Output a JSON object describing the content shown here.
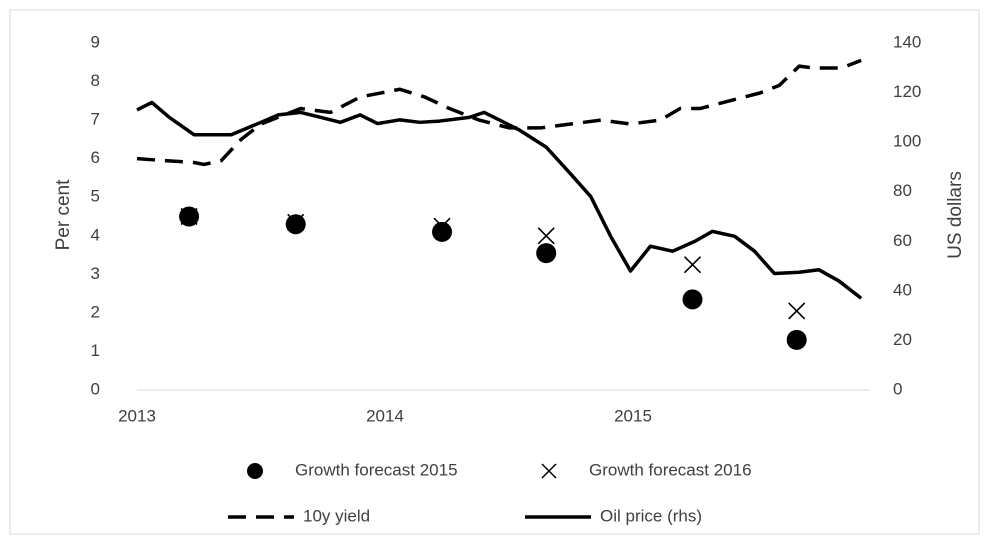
{
  "chart_data": {
    "type": "line",
    "y_label": "Per cent",
    "y2_label": "US dollars",
    "xlim": [
      2013,
      2016
    ],
    "xticks": [
      2013,
      2014,
      2015
    ],
    "ylim": [
      0,
      9
    ],
    "yticks": [
      0,
      1,
      2,
      3,
      4,
      5,
      6,
      7,
      8,
      9
    ],
    "y2lim": [
      0,
      140
    ],
    "y2ticks": [
      0,
      20,
      40,
      60,
      80,
      100,
      120,
      140
    ],
    "grid": false,
    "legend": "bottom",
    "series": [
      {
        "name": "Growth forecast 2015",
        "color": "#000000",
        "marker": "circle",
        "x": [
          2013.21,
          2013.64,
          2014.23,
          2014.65,
          2015.24,
          2015.66
        ],
        "values": [
          4.5,
          4.3,
          4.1,
          3.55,
          2.35,
          1.3
        ]
      },
      {
        "name": "Growth forecast 2016",
        "color": "#000000",
        "marker": "cross",
        "x": [
          2013.21,
          2013.64,
          2014.23,
          2014.65,
          2015.24,
          2015.66
        ],
        "values": [
          4.5,
          4.35,
          4.25,
          4.0,
          3.25,
          2.05
        ]
      },
      {
        "name": "10y yield",
        "color": "#000000",
        "marker": "dashed-line",
        "x": [
          2013.0,
          2013.11,
          2013.23,
          2013.27,
          2013.34,
          2013.42,
          2013.5,
          2013.62,
          2013.66,
          2013.78,
          2013.9,
          2014.06,
          2014.16,
          2014.26,
          2014.38,
          2014.5,
          2014.63,
          2014.75,
          2014.87,
          2014.99,
          2015.11,
          2015.19,
          2015.27,
          2015.39,
          2015.51,
          2015.59,
          2015.67,
          2015.73,
          2015.84,
          2015.92
        ],
        "values": [
          6.0,
          5.95,
          5.9,
          5.85,
          5.95,
          6.5,
          6.9,
          7.2,
          7.3,
          7.2,
          7.6,
          7.8,
          7.6,
          7.3,
          7.0,
          6.8,
          6.8,
          6.9,
          7.0,
          6.9,
          7.0,
          7.3,
          7.3,
          7.5,
          7.7,
          7.9,
          8.4,
          8.35,
          8.35,
          8.55
        ]
      },
      {
        "name": "Oil price (rhs)",
        "color": "#000000",
        "marker": "solid-line",
        "axis": "y2",
        "x": [
          2013.0,
          2013.06,
          2013.13,
          2013.23,
          2013.38,
          2013.5,
          2013.57,
          2013.66,
          2013.74,
          2013.82,
          2013.9,
          2013.97,
          2014.06,
          2014.14,
          2014.22,
          2014.34,
          2014.4,
          2014.46,
          2014.54,
          2014.65,
          2014.75,
          2014.83,
          2014.91,
          2014.99,
          2015.07,
          2015.16,
          2015.25,
          2015.32,
          2015.41,
          2015.49,
          2015.57,
          2015.67,
          2015.75,
          2015.83,
          2015.92
        ],
        "values": [
          113,
          116,
          110,
          103,
          103,
          108,
          111,
          112,
          110,
          108,
          111,
          107.5,
          109,
          108,
          108.5,
          110,
          112,
          109,
          105,
          98,
          87,
          78,
          62,
          48,
          58,
          56,
          60,
          64,
          62,
          56,
          47,
          47.5,
          48.5,
          44,
          37
        ]
      }
    ]
  }
}
